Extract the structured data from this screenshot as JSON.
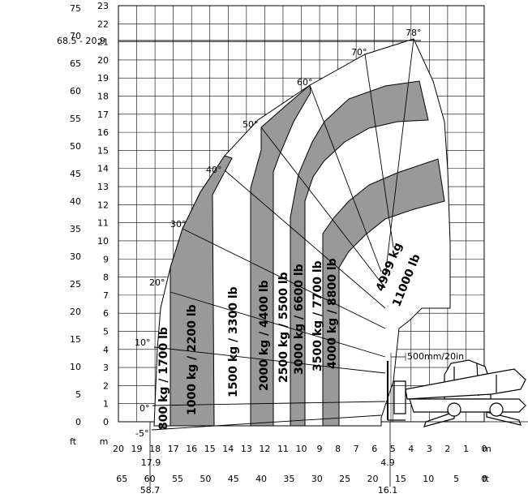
{
  "chart_data": {
    "type": "load-chart",
    "x_axis_m": {
      "unit": "m",
      "ticks": [
        "20",
        "19",
        "18",
        "17",
        "16",
        "15",
        "14",
        "13",
        "12",
        "11",
        "10",
        "9",
        "8",
        "7",
        "6",
        "5",
        "4",
        "3",
        "2",
        "1",
        "0"
      ],
      "unit_label_right": "m"
    },
    "x_axis_ft": {
      "unit": "ft",
      "ticks": [
        {
          "v": 65,
          "label": "65"
        },
        {
          "v": 60,
          "label": "60"
        },
        {
          "v": 55,
          "label": "55"
        },
        {
          "v": 50,
          "label": "50"
        },
        {
          "v": 45,
          "label": "45"
        },
        {
          "v": 40,
          "label": "40"
        },
        {
          "v": 35,
          "label": "35"
        },
        {
          "v": 30,
          "label": "30"
        },
        {
          "v": 25,
          "label": "25"
        },
        {
          "v": 20,
          "label": "20"
        },
        {
          "v": 15,
          "label": "15"
        },
        {
          "v": 10,
          "label": "10"
        },
        {
          "v": 5,
          "label": "5"
        },
        {
          "v": 0,
          "label": "0"
        }
      ],
      "unit_label_right": "ft"
    },
    "y_axis_m": {
      "unit": "m",
      "ticks": [
        "0",
        "1",
        "2",
        "3",
        "4",
        "5",
        "6",
        "7",
        "8",
        "9",
        "10",
        "11",
        "12",
        "13",
        "14",
        "15",
        "16",
        "17",
        "18",
        "19",
        "20",
        "21",
        "22",
        "23"
      ],
      "unit_label_bottom": "m"
    },
    "y_axis_ft": {
      "unit": "ft",
      "ticks": [
        "0",
        "5",
        "10",
        "15",
        "20",
        "25",
        "30",
        "35",
        "40",
        "45",
        "50",
        "55",
        "60",
        "65",
        "70",
        "75"
      ],
      "unit_label_bottom": "ft"
    },
    "special_labels": {
      "max_height": "68.5 - 20.9",
      "max_reach_m": "17.9",
      "max_reach_ft": "58.7",
      "front_reach_m": "4.9",
      "front_reach_ft": "16.1",
      "fork_dim": "500mm/20in"
    },
    "angles": [
      "78°",
      "70°",
      "60°",
      "50°",
      "40°",
      "30°",
      "20°",
      "10°",
      "0°",
      "-5°"
    ],
    "load_zones": [
      {
        "label": "800 kg / 1700 lb",
        "shade": "#ffffff"
      },
      {
        "label": "1000 kg / 2200 lb",
        "shade": "#999999"
      },
      {
        "label": "1500 kg / 3300 lb",
        "shade": "#ffffff"
      },
      {
        "label": "2000 kg / 4400 lb",
        "shade": "#999999"
      },
      {
        "label": "2500 kg / 5500 lb",
        "shade": "#ffffff"
      },
      {
        "label": "3000 kg / 6600 lb",
        "shade": "#999999"
      },
      {
        "label": "3500 kg / 7700 lb",
        "shade": "#ffffff"
      },
      {
        "label": "4000 kg / 8800 lb",
        "shade": "#999999"
      },
      {
        "label": "4999 kg 11000 lb",
        "shade": "#ffffff"
      }
    ]
  }
}
